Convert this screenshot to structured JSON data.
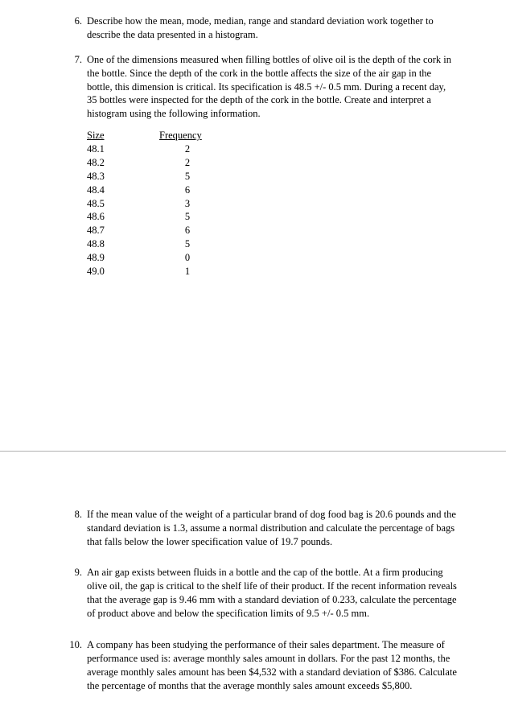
{
  "q6": {
    "num": "6.",
    "text": "Describe how the mean, mode, median, range and standard deviation work together to describe the data presented in a histogram."
  },
  "q7": {
    "num": "7.",
    "text": "One of the dimensions measured when filling bottles of olive oil is the depth of the cork in the bottle.  Since the depth of the cork in the bottle affects the size of the air gap in the bottle, this dimension is critical.  Its specification is 48.5 +/- 0.5 mm.  During a recent day, 35 bottles were inspected for the depth of the cork in the bottle.  Create and interpret a histogram using the following information.",
    "table": {
      "header1": "Size",
      "header2": "Frequency",
      "rows": [
        {
          "s": "48.1",
          "f": "2"
        },
        {
          "s": "48.2",
          "f": "2"
        },
        {
          "s": "48.3",
          "f": "5"
        },
        {
          "s": "48.4",
          "f": "6"
        },
        {
          "s": "48.5",
          "f": "3"
        },
        {
          "s": "48.6",
          "f": "5"
        },
        {
          "s": "48.7",
          "f": "6"
        },
        {
          "s": "48.8",
          "f": "5"
        },
        {
          "s": "48.9",
          "f": "0"
        },
        {
          "s": "49.0",
          "f": "1"
        }
      ]
    }
  },
  "q8": {
    "num": "8.",
    "text": "If the mean value of the weight of a particular brand of dog food bag is 20.6 pounds and the standard deviation is 1.3, assume a normal distribution and calculate the percentage of bags that falls below the lower specification value of 19.7 pounds."
  },
  "q9": {
    "num": "9.",
    "text": "An air gap exists between fluids in a bottle and the cap of the bottle.  At a firm producing olive oil, the gap is critical to the shelf life of their product.  If the recent information reveals that the average gap is 9.46 mm with a standard deviation of 0.233, calculate the percentage of product above and below the specification limits of 9.5 +/- 0.5 mm."
  },
  "q10": {
    "num": "10.",
    "text": "A company has been studying the performance of their sales department.  The measure of performance used is: average monthly sales amount in dollars.  For the past 12 months, the average monthly sales amount has been $4,532 with a standard deviation of $386.  Calculate the percentage of months that the average monthly sales amount exceeds $5,800."
  }
}
